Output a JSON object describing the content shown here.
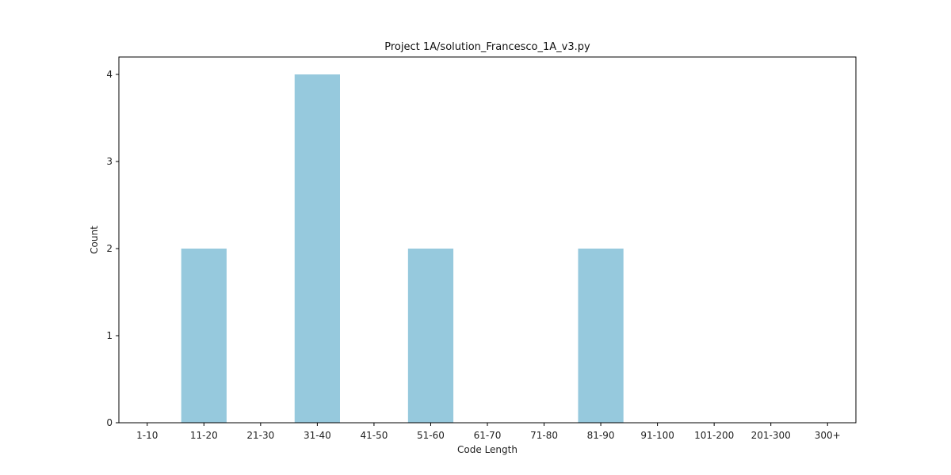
{
  "chart_data": {
    "type": "bar",
    "title": "Project 1A/solution_Francesco_1A_v3.py",
    "xlabel": "Code Length",
    "ylabel": "Count",
    "categories": [
      "1-10",
      "11-20",
      "21-30",
      "31-40",
      "41-50",
      "51-60",
      "61-70",
      "71-80",
      "81-90",
      "91-100",
      "101-200",
      "201-300",
      "300+"
    ],
    "values": [
      0,
      2,
      0,
      4,
      0,
      2,
      0,
      0,
      2,
      0,
      0,
      0,
      0
    ],
    "ylim": [
      0,
      4.2
    ],
    "yticks": [
      0,
      1,
      2,
      3,
      4
    ],
    "bar_color": "#96c9dd",
    "grid": false,
    "legend": "none"
  }
}
